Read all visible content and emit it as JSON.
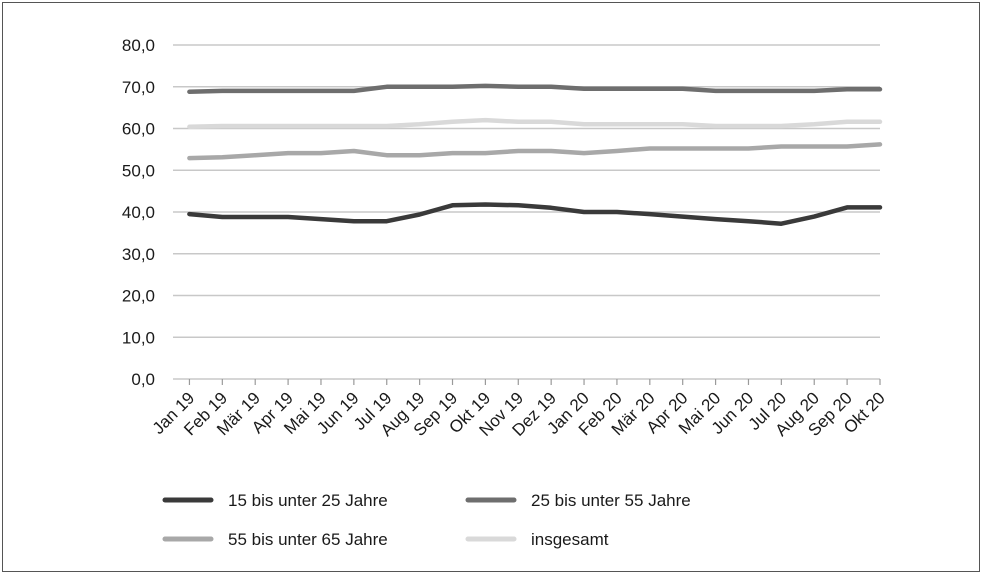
{
  "chart_data": {
    "type": "line",
    "title": "",
    "xlabel": "",
    "ylabel": "",
    "ylim": [
      0,
      80
    ],
    "yticks": [
      "0,0",
      "10,0",
      "20,0",
      "30,0",
      "40,0",
      "50,0",
      "60,0",
      "70,0",
      "80,0"
    ],
    "grid": true,
    "legend_position": "bottom",
    "categories": [
      "Jan 19",
      "Feb 19",
      "Mär 19",
      "Apr 19",
      "Mai 19",
      "Jun 19",
      "Jul 19",
      "Aug 19",
      "Sep 19",
      "Okt 19",
      "Nov 19",
      "Dez 19",
      "Jan 20",
      "Feb 20",
      "Mär 20",
      "Apr 20",
      "Mai 20",
      "Jun 20",
      "Jul 20",
      "Aug 20",
      "Sep 20",
      "Okt 20"
    ],
    "series": [
      {
        "name": "15 bis unter 25 Jahre",
        "color": "#3a3a3a",
        "values": [
          39.5,
          38.8,
          38.8,
          38.8,
          38.3,
          37.8,
          37.8,
          39.4,
          41.6,
          41.8,
          41.6,
          41.0,
          40.0,
          40.0,
          39.5,
          38.9,
          38.3,
          37.8,
          37.2,
          38.9,
          41.1,
          41.1
        ]
      },
      {
        "name": "25 bis unter 55 Jahre",
        "color": "#6e6e6e",
        "values": [
          68.8,
          69.0,
          69.0,
          69.0,
          69.0,
          69.0,
          70.0,
          70.0,
          70.0,
          70.2,
          70.0,
          70.0,
          69.5,
          69.5,
          69.5,
          69.5,
          69.0,
          69.0,
          69.0,
          69.0,
          69.4,
          69.4
        ]
      },
      {
        "name": "55 bis unter 65 Jahre",
        "color": "#a8a8a8",
        "values": [
          52.9,
          53.1,
          53.6,
          54.1,
          54.1,
          54.6,
          53.6,
          53.6,
          54.1,
          54.1,
          54.6,
          54.6,
          54.1,
          54.6,
          55.2,
          55.2,
          55.2,
          55.2,
          55.7,
          55.7,
          55.7,
          56.2
        ]
      },
      {
        "name": "insgesamt",
        "color": "#d9d9d9",
        "values": [
          60.4,
          60.6,
          60.6,
          60.6,
          60.6,
          60.6,
          60.6,
          61.0,
          61.6,
          62.0,
          61.6,
          61.6,
          61.0,
          61.0,
          61.0,
          61.0,
          60.6,
          60.6,
          60.6,
          61.0,
          61.6,
          61.6
        ]
      }
    ]
  }
}
